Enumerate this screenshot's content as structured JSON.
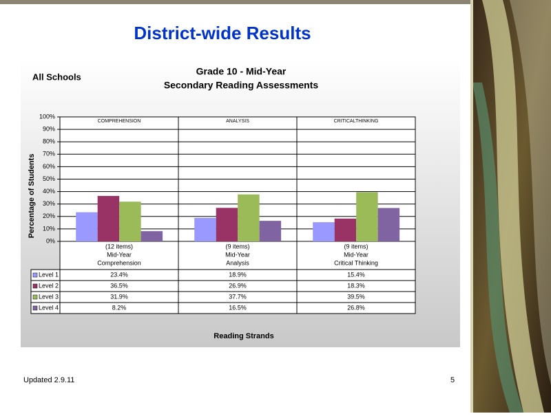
{
  "slide": {
    "title": "District-wide Results",
    "footer": "Updated 2.9.11",
    "page_number": "5"
  },
  "chart_data": {
    "type": "bar",
    "title": "Grade 10 - Mid-Year",
    "subtitle": "Secondary Reading Assessments",
    "scope_label": "All Schools",
    "y_label": "Percentage of Students",
    "x_label": "Reading Strands",
    "panel_labels": [
      "COMPREHENSION",
      "ANALYSIS",
      "CRITICALTHINKING"
    ],
    "category_items": [
      "(12 items)",
      "(9 items)",
      "(9 items)"
    ],
    "category_periods": [
      "Mid-Year",
      "Mid-Year",
      "Mid-Year"
    ],
    "categories": [
      "Comprehension",
      "Analysis",
      "Critical Thinking"
    ],
    "series": [
      {
        "name": "Level 1",
        "color": "#9999ff",
        "values": [
          23.4,
          18.9,
          15.4
        ],
        "value_labels": [
          "23.4%",
          "18.9%",
          "15.4%"
        ]
      },
      {
        "name": "Level 2",
        "color": "#993366",
        "values": [
          36.5,
          26.9,
          18.3
        ],
        "value_labels": [
          "36.5%",
          "26.9%",
          "18.3%"
        ]
      },
      {
        "name": "Level 3",
        "color": "#9bbb59",
        "values": [
          31.9,
          37.7,
          39.5
        ],
        "value_labels": [
          "31.9%",
          "37.7%",
          "39.5%"
        ]
      },
      {
        "name": "Level 4",
        "color": "#8064a2",
        "values": [
          8.2,
          16.5,
          26.8
        ],
        "value_labels": [
          "8.2%",
          "16.5%",
          "26.8%"
        ]
      }
    ],
    "ylim": [
      0,
      100
    ],
    "yticks": [
      {
        "value": 0,
        "label": "0%"
      },
      {
        "value": 10,
        "label": "10%"
      },
      {
        "value": 20,
        "label": "20%"
      },
      {
        "value": 30,
        "label": "30%"
      },
      {
        "value": 40,
        "label": "40%"
      },
      {
        "value": 50,
        "label": "50%"
      },
      {
        "value": 60,
        "label": "60%"
      },
      {
        "value": 70,
        "label": "70%"
      },
      {
        "value": 80,
        "label": "80%"
      },
      {
        "value": 90,
        "label": "90%"
      },
      {
        "value": 100,
        "label": "100%"
      }
    ],
    "grid": true
  }
}
